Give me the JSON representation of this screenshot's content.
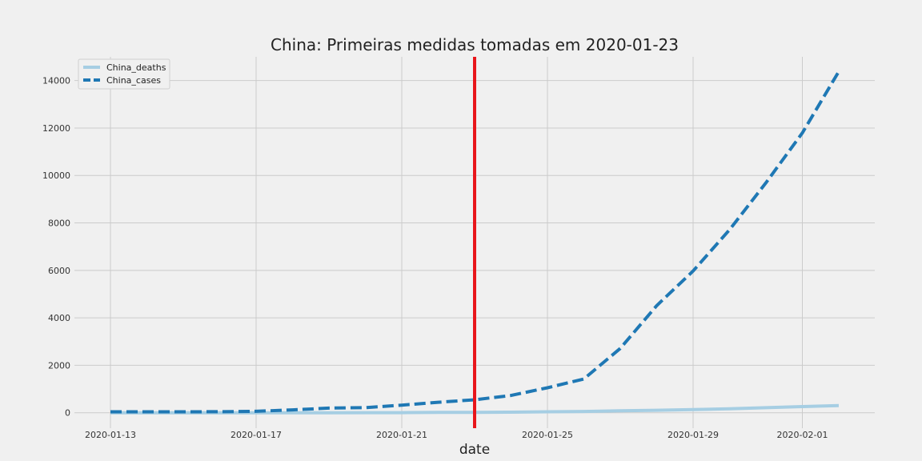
{
  "chart_data": {
    "type": "line",
    "title": "China: Primeiras medidas tomadas em 2020-01-23",
    "xlabel": "date",
    "ylabel": "",
    "x": [
      "2020-01-13",
      "2020-01-14",
      "2020-01-15",
      "2020-01-16",
      "2020-01-17",
      "2020-01-18",
      "2020-01-19",
      "2020-01-20",
      "2020-01-21",
      "2020-01-22",
      "2020-01-23",
      "2020-01-24",
      "2020-01-25",
      "2020-01-26",
      "2020-01-27",
      "2020-01-28",
      "2020-01-29",
      "2020-01-30",
      "2020-01-31",
      "2020-02-01",
      "2020-02-02"
    ],
    "series": [
      {
        "name": "China_deaths",
        "color": "#a6cee3",
        "style": "solid",
        "values": [
          1,
          1,
          1,
          1,
          1,
          1,
          2,
          3,
          6,
          17,
          18,
          26,
          42,
          56,
          82,
          106,
          132,
          170,
          213,
          259,
          304
        ]
      },
      {
        "name": "China_cases",
        "color": "#1f78b4",
        "style": "dashed",
        "values": [
          41,
          41,
          41,
          45,
          62,
          121,
          198,
          218,
          320,
          444,
          549,
          729,
          1052,
          1423,
          2714,
          4515,
          5974,
          7711,
          9692,
          11791,
          14380
        ]
      }
    ],
    "ylim": [
      -650,
      15000
    ],
    "xlim": [
      "2020-01-13",
      "2020-02-02"
    ],
    "y_ticks": [
      "0",
      "2000",
      "4000",
      "6000",
      "8000",
      "10000",
      "12000",
      "14000"
    ],
    "x_ticks": [
      "2020-01-13",
      "2020-01-17",
      "2020-01-21",
      "2020-01-25",
      "2020-01-29",
      "2020-02-01"
    ],
    "vline": {
      "x": "2020-01-23",
      "color": "#e8161b"
    },
    "grid": true,
    "legend_position": "top-left"
  }
}
